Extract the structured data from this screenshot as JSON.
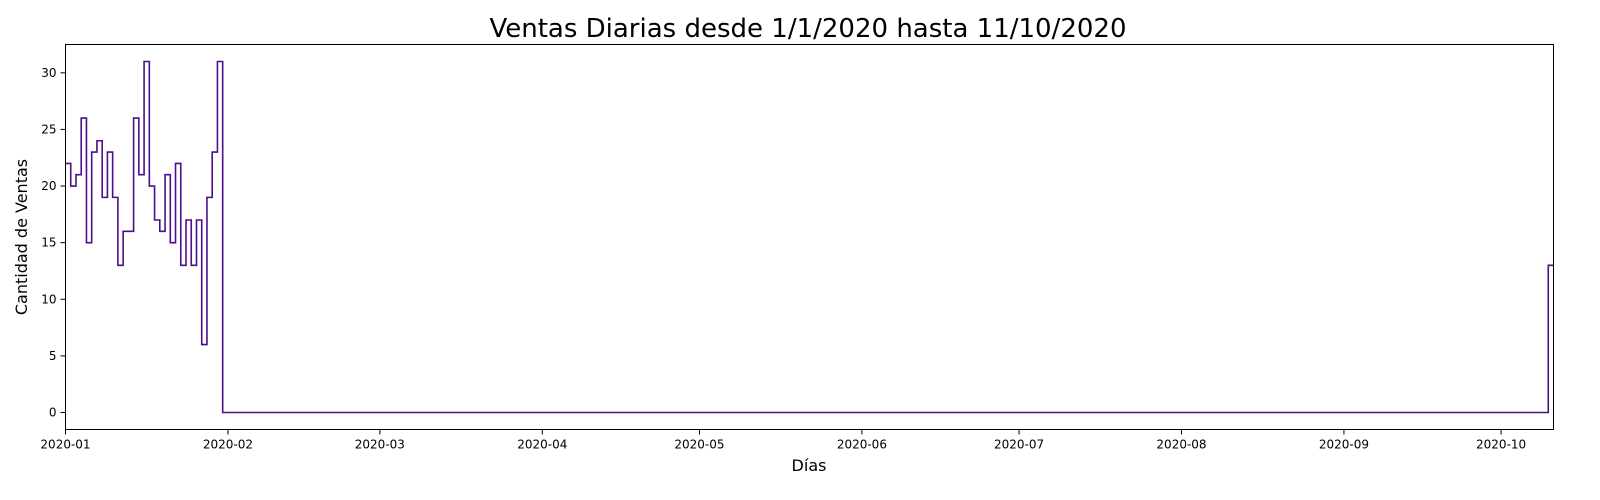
{
  "chart_data": {
    "type": "line",
    "step": "post",
    "title": "Ventas Diarias desde 1/1/2020 hasta 11/10/2020",
    "xlabel": "Días",
    "ylabel": "Cantidad de Ventas",
    "xlim": [
      "2020-01-01",
      "2020-10-11"
    ],
    "ylim": [
      -1.5,
      32.5
    ],
    "x_ticks": [
      "2020-01-01",
      "2020-02-01",
      "2020-03-01",
      "2020-04-01",
      "2020-05-01",
      "2020-06-01",
      "2020-07-01",
      "2020-08-01",
      "2020-09-01",
      "2020-10-01"
    ],
    "x_tick_labels": [
      "2020-01",
      "2020-02",
      "2020-03",
      "2020-04",
      "2020-05",
      "2020-06",
      "2020-07",
      "2020-08",
      "2020-09",
      "2020-10"
    ],
    "y_ticks": [
      0,
      5,
      10,
      15,
      20,
      25,
      30
    ],
    "y_tick_labels": [
      "0",
      "5",
      "10",
      "15",
      "20",
      "25",
      "30"
    ],
    "grid": false,
    "legend": null,
    "series": [
      {
        "color": "#4b0f8c",
        "x": [
          "2020-01-01",
          "2020-01-02",
          "2020-01-03",
          "2020-01-04",
          "2020-01-05",
          "2020-01-06",
          "2020-01-07",
          "2020-01-08",
          "2020-01-09",
          "2020-01-10",
          "2020-01-11",
          "2020-01-12",
          "2020-01-13",
          "2020-01-14",
          "2020-01-15",
          "2020-01-16",
          "2020-01-17",
          "2020-01-18",
          "2020-01-19",
          "2020-01-20",
          "2020-01-21",
          "2020-01-22",
          "2020-01-23",
          "2020-01-24",
          "2020-01-25",
          "2020-01-26",
          "2020-01-27",
          "2020-01-28",
          "2020-01-29",
          "2020-01-30",
          "2020-01-31",
          "2020-10-10"
        ],
        "y": [
          22,
          20,
          21,
          26,
          15,
          23,
          24,
          19,
          23,
          19,
          13,
          16,
          16,
          26,
          21,
          31,
          20,
          17,
          16,
          21,
          15,
          22,
          13,
          17,
          13,
          17,
          6,
          19,
          23,
          31,
          0,
          13
        ]
      }
    ]
  }
}
